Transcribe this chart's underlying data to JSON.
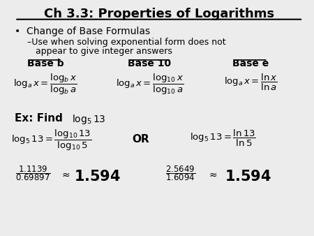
{
  "title": "Ch 3.3: Properties of Logarithms",
  "background_color": "#ececec",
  "text_color": "#000000",
  "figsize": [
    4.5,
    3.38
  ],
  "dpi": 100,
  "bullet": "Change of Base Formulas",
  "sub_bullet_1": "–Use when solving exponential form does not",
  "sub_bullet_2": "   appear to give integer answers",
  "base_b": "Base b",
  "base_10": "Base 10",
  "base_e": "Base e",
  "formula_b": "$\\log_a x = \\dfrac{\\log_b x}{\\log_b a}$",
  "formula_10": "$\\log_a x = \\dfrac{\\log_{10} x}{\\log_{10} a}$",
  "formula_e": "$\\log_a x = \\dfrac{\\ln x}{\\ln a}$",
  "ex_find": "Ex: Find ",
  "ex_log": "$\\log_5 13$",
  "ex_eq1": "$\\log_5 13 = \\dfrac{\\log_{10} 13}{\\log_{10} 5}$",
  "or_text": "OR",
  "ex_eq2": "$\\log_5 13 = \\dfrac{\\ln 13}{\\ln 5}$",
  "frac1": "$\\dfrac{1.1139}{0.69897}$",
  "approx1": "$\\approx$",
  "result1": "1.594",
  "frac2": "$\\dfrac{2.5649}{1.6094}$",
  "approx2": "$\\approx$",
  "result2": "1.594"
}
